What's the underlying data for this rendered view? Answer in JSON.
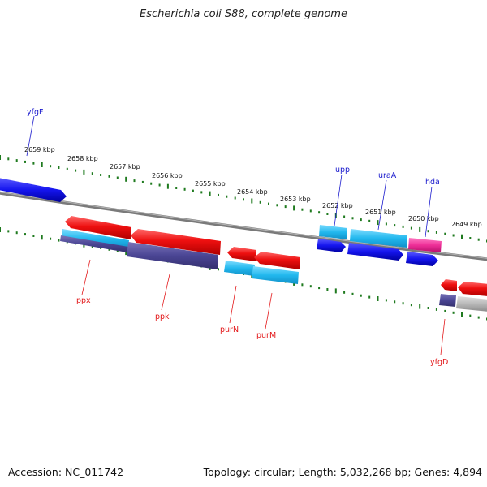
{
  "title": "Escherichia coli S88, complete genome",
  "footer": {
    "accession": "Accession: NC_011742",
    "summary": "Topology: circular; Length: 5,032,268 bp; Genes: 4,894"
  },
  "colors": {
    "forward_gene": "#1a1acd",
    "reverse_gene": "#e31a1c",
    "tick": "#1f7a1f",
    "backbone": "#808080"
  },
  "scale_labels": [
    "2659 kbp",
    "2658 kbp",
    "2657 kbp",
    "2656 kbp",
    "2655 kbp",
    "2654 kbp",
    "2653 kbp",
    "2652 kbp",
    "2651 kbp",
    "2650 kbp",
    "2649 kbp"
  ],
  "forward_genes": [
    "yfgF",
    "upp",
    "uraA",
    "hda"
  ],
  "reverse_genes": [
    "ppx",
    "ppk",
    "purN",
    "purM",
    "yfgD"
  ]
}
